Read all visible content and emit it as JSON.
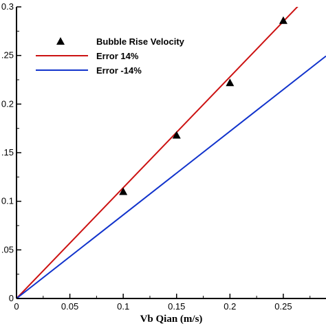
{
  "chart_data": {
    "type": "scatter",
    "xlabel": "Vb Qian (m/s)",
    "ylabel": "",
    "xlim": [
      0,
      0.29
    ],
    "ylim": [
      0,
      0.3
    ],
    "x_ticks": [
      {
        "value": 0,
        "label": "0"
      },
      {
        "value": 0.05,
        "label": "0.05"
      },
      {
        "value": 0.1,
        "label": "0.1"
      },
      {
        "value": 0.15,
        "label": "0.15"
      },
      {
        "value": 0.2,
        "label": "0.2"
      },
      {
        "value": 0.25,
        "label": "0.25"
      }
    ],
    "y_ticks": [
      {
        "value": 0,
        "label": "0"
      },
      {
        "value": 0.05,
        "label": ".05"
      },
      {
        "value": 0.1,
        "label": "0.1"
      },
      {
        "value": 0.15,
        "label": ".15"
      },
      {
        "value": 0.2,
        "label": "0.2"
      },
      {
        "value": 0.25,
        "label": ".25"
      },
      {
        "value": 0.3,
        "label": "0.3"
      }
    ],
    "grid": false,
    "legend_position": "top-left",
    "series": [
      {
        "name": "Bubble Rise Velocity",
        "kind": "markers",
        "marker": "triangle",
        "color": "#000000",
        "x": [
          0.1,
          0.15,
          0.2,
          0.25
        ],
        "y": [
          0.11,
          0.168,
          0.222,
          0.286
        ]
      },
      {
        "name": "Error 14%",
        "kind": "line",
        "color": "#cc1111",
        "x": [
          0,
          0.29
        ],
        "y": [
          0,
          0.3306
        ]
      },
      {
        "name": "Error -14%",
        "kind": "line",
        "color": "#1133cc",
        "x": [
          0,
          0.29
        ],
        "y": [
          0,
          0.2494
        ]
      }
    ]
  }
}
